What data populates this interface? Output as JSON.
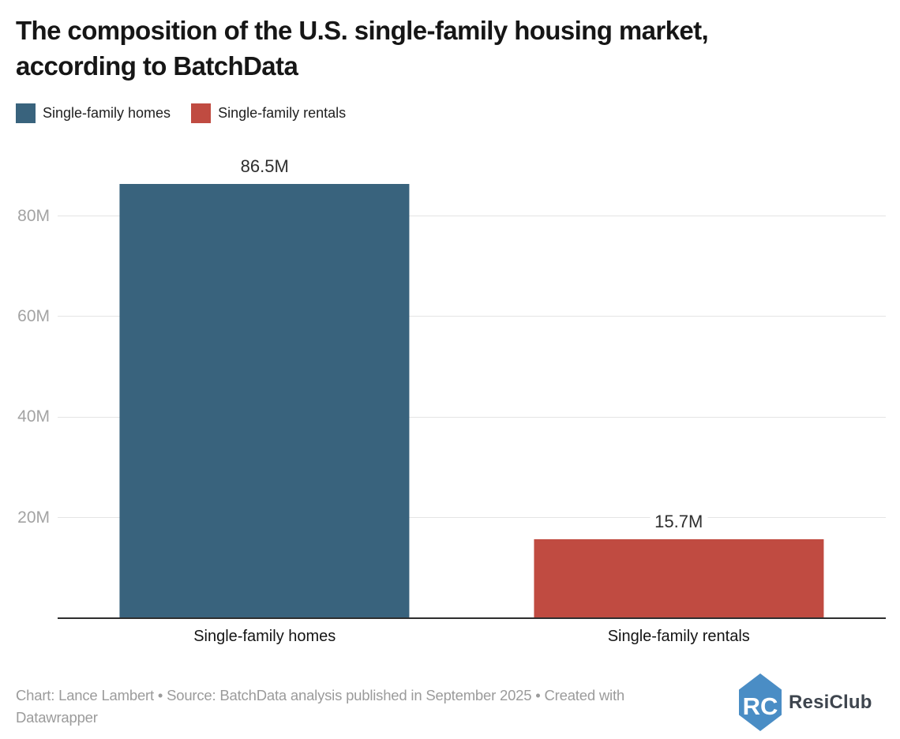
{
  "title": {
    "line1": "The composition of the U.S. single-family housing market,",
    "line2": "according to BatchData"
  },
  "legend": {
    "items": [
      {
        "label": "Single-family homes",
        "color": "#39637d"
      },
      {
        "label": "Single-family rentals",
        "color": "#c04b41"
      }
    ]
  },
  "chart_data": {
    "type": "bar",
    "title": "The composition of the U.S. single-family housing market, according to BatchData",
    "categories": [
      "Single-family homes",
      "Single-family rentals"
    ],
    "values": [
      86.5,
      15.7
    ],
    "value_labels": [
      "86.5M",
      "15.7M"
    ],
    "colors": [
      "#39637d",
      "#c04b41"
    ],
    "unit": "M",
    "xlabel": "",
    "ylabel": "",
    "y_ticks": [
      {
        "value": 20,
        "label": "20M"
      },
      {
        "value": 40,
        "label": "40M"
      },
      {
        "value": 60,
        "label": "60M"
      },
      {
        "value": 80,
        "label": "80M"
      }
    ],
    "ylim": [
      0,
      93.2
    ],
    "grid": true,
    "legend_position": "top"
  },
  "footer": {
    "credit": "Chart: Lance Lambert • Source: BatchData analysis published in September 2025 • Created with Datawrapper"
  },
  "logo": {
    "monogram": "RC",
    "name": "ResiClub",
    "color": "#4a8dc5"
  }
}
